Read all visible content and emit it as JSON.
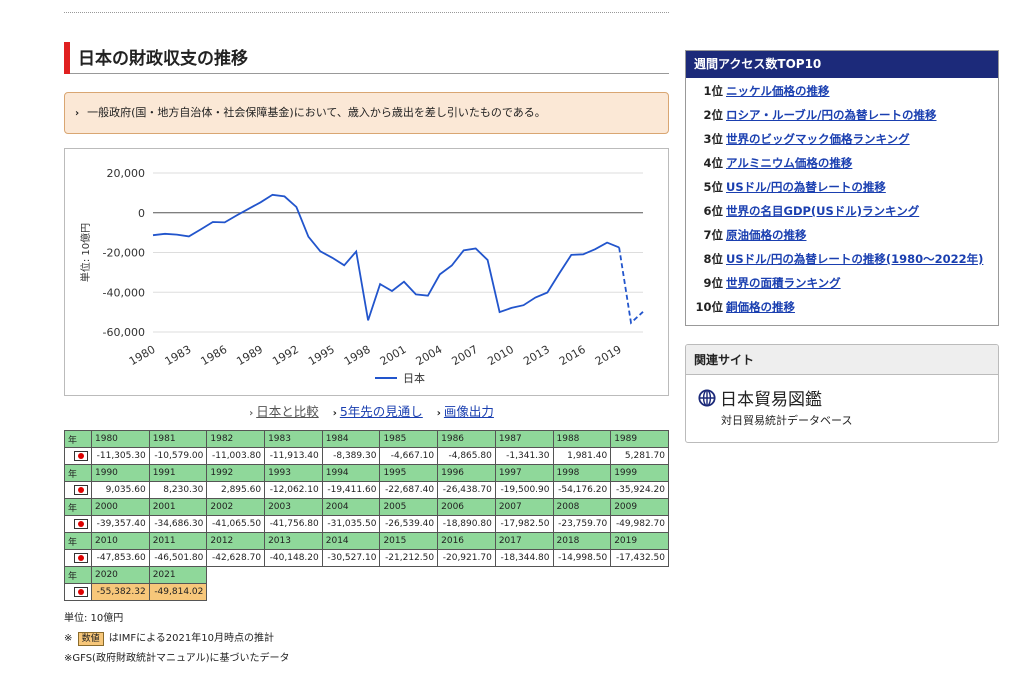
{
  "title": "日本の財政収支の推移",
  "note": "一般政府(国・地方自治体・社会保障基金)において、歳入から歳出を差し引いたものである。",
  "note_arrow": "›",
  "links": [
    "日本と比較",
    "5年先の見通し",
    "画像出力"
  ],
  "table": {
    "year_header": "年",
    "rows": [
      {
        "years": [
          "1980",
          "1981",
          "1982",
          "1983",
          "1984",
          "1985",
          "1986",
          "1987",
          "1988",
          "1989"
        ],
        "values": [
          "-11,305.30",
          "-10,579.00",
          "-11,003.80",
          "-11,913.40",
          "-8,389.30",
          "-4,667.10",
          "-4,865.80",
          "-1,341.30",
          "1,981.40",
          "5,281.70"
        ]
      },
      {
        "years": [
          "1990",
          "1991",
          "1992",
          "1993",
          "1994",
          "1995",
          "1996",
          "1997",
          "1998",
          "1999"
        ],
        "values": [
          "9,035.60",
          "8,230.30",
          "2,895.60",
          "-12,062.10",
          "-19,411.60",
          "-22,687.40",
          "-26,438.70",
          "-19,500.90",
          "-54,176.20",
          "-35,924.20"
        ]
      },
      {
        "years": [
          "2000",
          "2001",
          "2002",
          "2003",
          "2004",
          "2005",
          "2006",
          "2007",
          "2008",
          "2009"
        ],
        "values": [
          "-39,357.40",
          "-34,686.30",
          "-41,065.50",
          "-41,756.80",
          "-31,035.50",
          "-26,539.40",
          "-18,890.80",
          "-17,982.50",
          "-23,759.70",
          "-49,982.70"
        ]
      },
      {
        "years": [
          "2010",
          "2011",
          "2012",
          "2013",
          "2014",
          "2015",
          "2016",
          "2017",
          "2018",
          "2019"
        ],
        "values": [
          "-47,853.60",
          "-46,501.80",
          "-42,628.70",
          "-40,148.20",
          "-30,527.10",
          "-21,212.50",
          "-20,921.70",
          "-18,344.80",
          "-14,998.50",
          "-17,432.50"
        ]
      },
      {
        "years": [
          "2020",
          "2021"
        ],
        "values": [
          "-55,382.32",
          "-49,814.02"
        ],
        "estimate": true
      }
    ]
  },
  "footnotes": {
    "unit": "単位: 10億円",
    "est_prefix": "※",
    "est_badge": "数値",
    "est_text": "はIMFによる2021年10月時点の推計",
    "gfs": "※GFS(政府財政統計マニュアル)に基づいたデータ"
  },
  "ranking": {
    "title": "週間アクセス数TOP10",
    "items": [
      {
        "rank": "1位",
        "label": "ニッケル価格の推移"
      },
      {
        "rank": "2位",
        "label": "ロシア・ルーブル/円の為替レートの推移"
      },
      {
        "rank": "3位",
        "label": "世界のビッグマック価格ランキング"
      },
      {
        "rank": "4位",
        "label": "アルミニウム価格の推移"
      },
      {
        "rank": "5位",
        "label": "USドル/円の為替レートの推移"
      },
      {
        "rank": "6位",
        "label": "世界の名目GDP(USドル)ランキング"
      },
      {
        "rank": "7位",
        "label": "原油価格の推移"
      },
      {
        "rank": "8位",
        "label": "USドル/円の為替レートの推移(1980〜2022年)"
      },
      {
        "rank": "9位",
        "label": "世界の面積ランキング"
      },
      {
        "rank": "10位",
        "label": "銅価格の推移"
      }
    ]
  },
  "related": {
    "title": "関連サイト",
    "site_name": "日本貿易図鑑",
    "site_desc": "対日貿易統計データベース"
  },
  "colors": {
    "line": "#2255cc",
    "title_bar": "#e02020",
    "year_cell": "#8fd89a",
    "estimate_cell": "#f7c77a",
    "ranking_header": "#1c2a7a"
  },
  "chart_data": {
    "type": "line",
    "ylabel": "単位: 10億円",
    "ylim": [
      -60000,
      20000
    ],
    "yticks": [
      20000,
      0,
      -20000,
      -40000,
      -60000
    ],
    "ytick_labels": [
      "20,000",
      "0",
      "-20,000",
      "-40,000",
      "-60,000"
    ],
    "xticks": [
      "1980",
      "1983",
      "1986",
      "1989",
      "1992",
      "1995",
      "1998",
      "2001",
      "2004",
      "2007",
      "2010",
      "2013",
      "2016",
      "2019"
    ],
    "legend": "top-bottom-center",
    "grid": true,
    "series": [
      {
        "name": "日本",
        "x": [
          1980,
          1981,
          1982,
          1983,
          1984,
          1985,
          1986,
          1987,
          1988,
          1989,
          1990,
          1991,
          1992,
          1993,
          1994,
          1995,
          1996,
          1997,
          1998,
          1999,
          2000,
          2001,
          2002,
          2003,
          2004,
          2005,
          2006,
          2007,
          2008,
          2009,
          2010,
          2011,
          2012,
          2013,
          2014,
          2015,
          2016,
          2017,
          2018,
          2019,
          2020,
          2021
        ],
        "values": [
          -11305.3,
          -10579.0,
          -11003.8,
          -11913.4,
          -8389.3,
          -4667.1,
          -4865.8,
          -1341.3,
          1981.4,
          5281.7,
          9035.6,
          8230.3,
          2895.6,
          -12062.1,
          -19411.6,
          -22687.4,
          -26438.7,
          -19500.9,
          -54176.2,
          -35924.2,
          -39357.4,
          -34686.3,
          -41065.5,
          -41756.8,
          -31035.5,
          -26539.4,
          -18890.8,
          -17982.5,
          -23759.7,
          -49982.7,
          -47853.6,
          -46501.8,
          -42628.7,
          -40148.2,
          -30527.1,
          -21212.5,
          -20921.7,
          -18344.8,
          -14998.5,
          -17432.5,
          -55382.32,
          -49814.02
        ],
        "estimate_from": 2020
      }
    ]
  }
}
